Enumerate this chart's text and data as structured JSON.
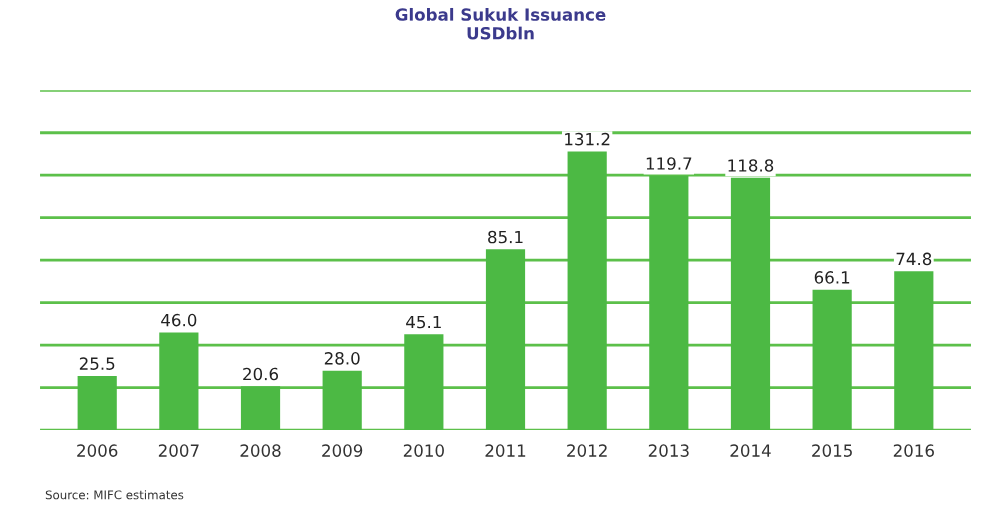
{
  "chart_data": {
    "type": "bar",
    "title": "Global Sukuk Issuance\nUSDbln",
    "categories": [
      "2006",
      "2007",
      "2008",
      "2009",
      "2010",
      "2011",
      "2012",
      "2013",
      "2014",
      "2015",
      "2016"
    ],
    "values": [
      25.5,
      46.0,
      20.6,
      28.0,
      45.1,
      85.1,
      131.2,
      119.7,
      118.8,
      66.1,
      74.8
    ],
    "value_labels": [
      "25.5",
      "46.0",
      "20.6",
      "28.0",
      "45.1",
      "85.1",
      "131.2",
      "119.7",
      "118.8",
      "66.1",
      "74.8"
    ],
    "color": "#4cb944",
    "ylim": [
      0,
      160
    ],
    "yticks": [
      {
        "value": 0,
        "label": null
      },
      {
        "value": 20,
        "label": null
      },
      {
        "value": 40,
        "label": null
      },
      {
        "value": 60,
        "label": null
      },
      {
        "value": 80,
        "label": null
      },
      {
        "value": 100,
        "label": null
      },
      {
        "value": 120,
        "label": null
      },
      {
        "value": 140,
        "label": null
      },
      {
        "value": 160,
        "label": null
      }
    ],
    "grid": "y",
    "tick_labels": "x",
    "annotations": [
      "Source: MIFC estimates"
    ]
  }
}
